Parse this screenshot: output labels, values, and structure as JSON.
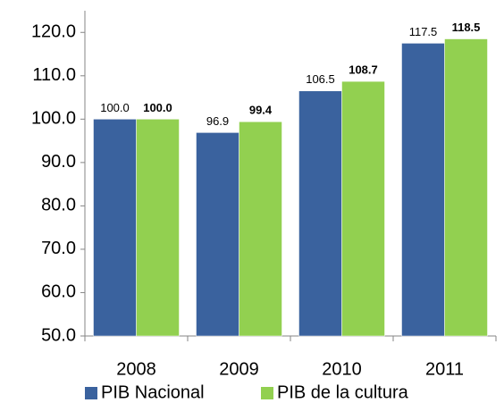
{
  "chart_data": {
    "type": "bar",
    "categories": [
      "2008",
      "2009",
      "2010",
      "2011"
    ],
    "series": [
      {
        "name": "PIB Nacional",
        "color": "#3a629e",
        "label_color": "#2f4a73",
        "label_bold": false,
        "values": [
          100.0,
          96.9,
          106.5,
          117.5
        ],
        "value_labels": [
          "100.0",
          "96.9",
          "106.5",
          "117.5"
        ]
      },
      {
        "name": "PIB de la cultura",
        "color": "#92d050",
        "label_color": "#4f6228",
        "label_bold": true,
        "values": [
          100.0,
          99.4,
          108.7,
          118.5
        ],
        "value_labels": [
          "100.0",
          "99.4",
          "108.7",
          "118.5"
        ]
      }
    ],
    "ylim": [
      50,
      125
    ],
    "yticks": [
      {
        "value": 50,
        "label": "50.0"
      },
      {
        "value": 60,
        "label": "60.0"
      },
      {
        "value": 70,
        "label": "70.0"
      },
      {
        "value": 80,
        "label": "80.0"
      },
      {
        "value": 90,
        "label": "90.0"
      },
      {
        "value": 100,
        "label": "100.0"
      },
      {
        "value": 110,
        "label": "110.0"
      },
      {
        "value": 120,
        "label": "120.0"
      }
    ],
    "grid": false,
    "legend": "bottom"
  }
}
